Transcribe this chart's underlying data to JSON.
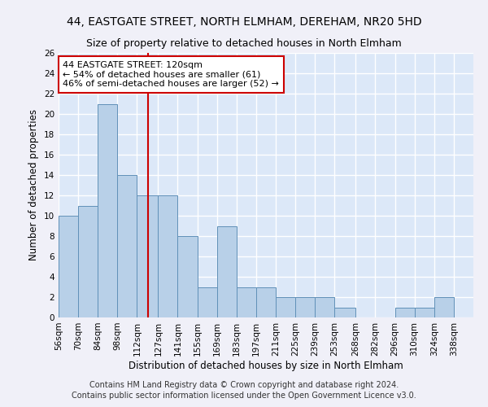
{
  "title1": "44, EASTGATE STREET, NORTH ELMHAM, DEREHAM, NR20 5HD",
  "title2": "Size of property relative to detached houses in North Elmham",
  "xlabel": "Distribution of detached houses by size in North Elmham",
  "ylabel": "Number of detached properties",
  "footnote1": "Contains HM Land Registry data © Crown copyright and database right 2024.",
  "footnote2": "Contains public sector information licensed under the Open Government Licence v3.0.",
  "annotation_line1": "44 EASTGATE STREET: 120sqm",
  "annotation_line2": "← 54% of detached houses are smaller (61)",
  "annotation_line3": "46% of semi-detached houses are larger (52) →",
  "bar_color": "#b8d0e8",
  "bar_edge_color": "#6090b8",
  "vline_color": "#cc0000",
  "vline_x": 120,
  "categories": [
    "56sqm",
    "70sqm",
    "84sqm",
    "98sqm",
    "112sqm",
    "127sqm",
    "141sqm",
    "155sqm",
    "169sqm",
    "183sqm",
    "197sqm",
    "211sqm",
    "225sqm",
    "239sqm",
    "253sqm",
    "268sqm",
    "282sqm",
    "296sqm",
    "310sqm",
    "324sqm",
    "338sqm"
  ],
  "bin_edges": [
    56,
    70,
    84,
    98,
    112,
    127,
    141,
    155,
    169,
    183,
    197,
    211,
    225,
    239,
    253,
    268,
    282,
    296,
    310,
    324,
    338,
    352
  ],
  "values": [
    10,
    11,
    21,
    14,
    12,
    12,
    8,
    3,
    9,
    3,
    3,
    2,
    2,
    2,
    1,
    0,
    0,
    1,
    1,
    2,
    0
  ],
  "ylim": [
    0,
    26
  ],
  "yticks": [
    0,
    2,
    4,
    6,
    8,
    10,
    12,
    14,
    16,
    18,
    20,
    22,
    24,
    26
  ],
  "background_color": "#dce8f8",
  "grid_color": "#ffffff",
  "fig_background": "#f0f0f8",
  "title_fontsize": 10,
  "subtitle_fontsize": 9,
  "axis_label_fontsize": 8.5,
  "tick_fontsize": 7.5,
  "annot_fontsize": 8,
  "footnote_fontsize": 7
}
